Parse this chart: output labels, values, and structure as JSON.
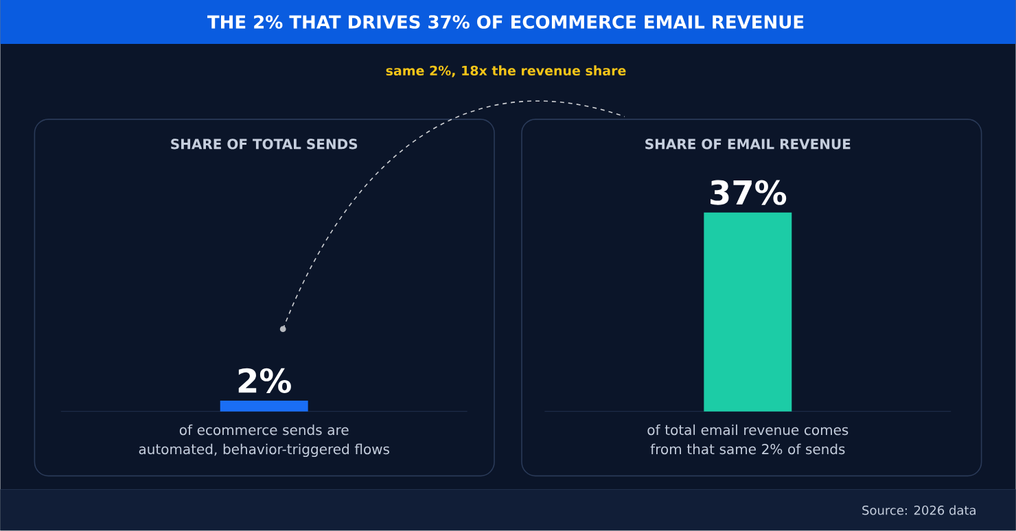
{
  "chart_data": {
    "type": "bar",
    "categories": [
      "of ecommerce sends are automated, behavior-triggered flows",
      "of total email revenue comes from that same 2% of sends"
    ],
    "values": [
      2,
      37
    ],
    "value_labels": [
      "2%",
      "37%"
    ],
    "colors": [
      "#1a6ef5",
      "#1ccca6"
    ],
    "annotations": [
      "THE 2% THAT DRIVES 37% OF ECOMMERCE EMAIL REVENUE",
      "same 2%, 18x the revenue share",
      "SHARE OF TOTAL SENDS",
      "SHARE OF EMAIL REVENUE",
      "Source: 2026 data"
    ]
  }
}
